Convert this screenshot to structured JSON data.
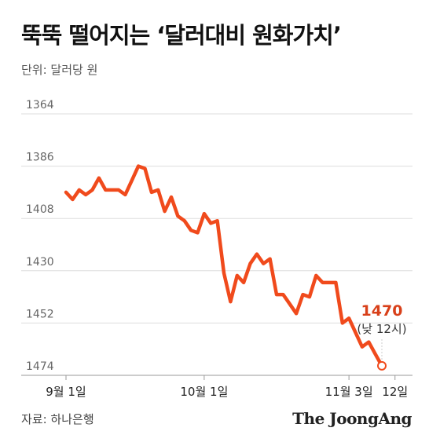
{
  "header": {
    "title": "뚝뚝 떨어지는 ‘달러대비 원화가치’",
    "unit": "단위: 달러당 원"
  },
  "footer": {
    "source": "자료: 하나은행",
    "brand": "The JoongAng"
  },
  "colors": {
    "line": "#f04a1c",
    "accent_label": "#d8401a",
    "grid": "#dddddd",
    "axis_text": "#666666"
  },
  "chart_data": {
    "type": "line",
    "title": "뚝뚝 떨어지는 ‘달러대비 원화가치’",
    "ylabel": "단위: 달러당 원",
    "y_inverted": true,
    "ylim": [
      1364,
      1474
    ],
    "yticks": [
      1364,
      1386,
      1408,
      1430,
      1452,
      1474
    ],
    "grid": true,
    "xticks": [
      {
        "label": "9월 1일",
        "index": 0
      },
      {
        "label": "10월 1일",
        "index": 21
      },
      {
        "label": "11월 3일",
        "index": 43
      },
      {
        "label": "12일",
        "index": 50
      }
    ],
    "series": [
      {
        "values": [
          1397,
          1400,
          1396,
          1398,
          1396,
          1391,
          1396,
          1396,
          1396,
          1398,
          1392,
          1386,
          1387,
          1397,
          1396,
          1405,
          1399,
          1407,
          1409,
          1413,
          1414,
          1406,
          1410,
          1409,
          1431,
          1443,
          1432,
          1435,
          1427,
          1423,
          1427,
          1425,
          1440,
          1440,
          1444,
          1448,
          1440,
          1441,
          1432,
          1435,
          1435,
          1435,
          1452,
          1450,
          1456,
          1462,
          1460,
          1465,
          1470
        ]
      }
    ],
    "annotation": {
      "value": "1470",
      "note": "(낮 12시)",
      "index": 48
    }
  }
}
